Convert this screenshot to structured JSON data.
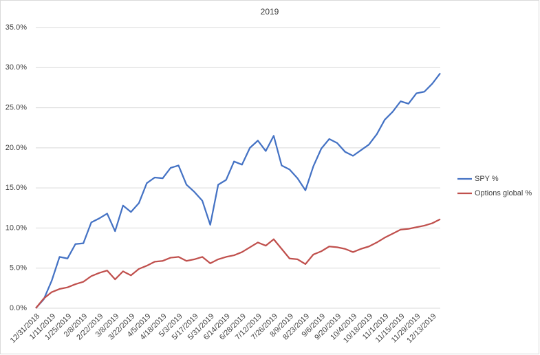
{
  "chart_data": {
    "type": "line",
    "title": "2019",
    "categories": [
      "12/31/2018",
      null,
      "1/11/2019",
      null,
      "1/25/2019",
      null,
      "2/8/2019",
      null,
      "2/22/2019",
      null,
      "3/8/2019",
      null,
      "3/22/2019",
      null,
      "4/5/2019",
      null,
      "4/18/2019",
      null,
      "5/3/2019",
      null,
      "5/17/2019",
      null,
      "5/31/2019",
      null,
      "6/14/2019",
      null,
      "6/28/2019",
      null,
      "7/12/2019",
      null,
      "7/26/2019",
      null,
      "8/9/2019",
      null,
      "8/23/2019",
      null,
      "9/6/2019",
      null,
      "9/20/2019",
      null,
      "10/4/2019",
      null,
      "10/18/2019",
      null,
      "11/1/2019",
      null,
      "11/15/2019",
      null,
      "11/29/2019",
      null,
      "12/13/2019",
      null
    ],
    "series": [
      {
        "name": "SPY %",
        "color": "#4472c4",
        "values": [
          0,
          1.1,
          3.4,
          6.4,
          6.2,
          8.0,
          8.1,
          10.7,
          11.2,
          11.8,
          9.6,
          12.8,
          12.0,
          13.1,
          15.6,
          16.3,
          16.2,
          17.5,
          17.8,
          15.4,
          14.5,
          13.4,
          10.4,
          15.4,
          16.0,
          18.3,
          17.9,
          20.0,
          20.9,
          19.6,
          21.5,
          17.8,
          17.3,
          16.2,
          14.7,
          17.7,
          19.9,
          21.1,
          20.6,
          19.5,
          19.0,
          19.7,
          20.4,
          21.7,
          23.5,
          24.5,
          25.8,
          25.5,
          26.8,
          27.0,
          28.0,
          29.3
        ]
      },
      {
        "name": "Options global %",
        "color": "#c0504d",
        "values": [
          0,
          1.2,
          2.0,
          2.4,
          2.6,
          3.0,
          3.3,
          4.0,
          4.4,
          4.7,
          3.6,
          4.6,
          4.1,
          4.9,
          5.3,
          5.8,
          5.9,
          6.3,
          6.4,
          5.9,
          6.1,
          6.4,
          5.6,
          6.1,
          6.4,
          6.6,
          7.0,
          7.6,
          8.2,
          7.8,
          8.6,
          7.4,
          6.2,
          6.1,
          5.5,
          6.7,
          7.1,
          7.7,
          7.6,
          7.4,
          7.0,
          7.4,
          7.7,
          8.2,
          8.8,
          9.3,
          9.8,
          9.9,
          10.1,
          10.3,
          10.6,
          11.1
        ]
      }
    ],
    "ylim": [
      0,
      35
    ],
    "yticks": [
      {
        "value": 0,
        "label": "0.0%"
      },
      {
        "value": 5,
        "label": "5.0%"
      },
      {
        "value": 10,
        "label": "10.0%"
      },
      {
        "value": 15,
        "label": "15.0%"
      },
      {
        "value": 20,
        "label": "20.0%"
      },
      {
        "value": 25,
        "label": "25.0%"
      },
      {
        "value": 30,
        "label": "30.0%"
      },
      {
        "value": 35,
        "label": "35.0%"
      }
    ],
    "grid": true,
    "legend": "right"
  }
}
